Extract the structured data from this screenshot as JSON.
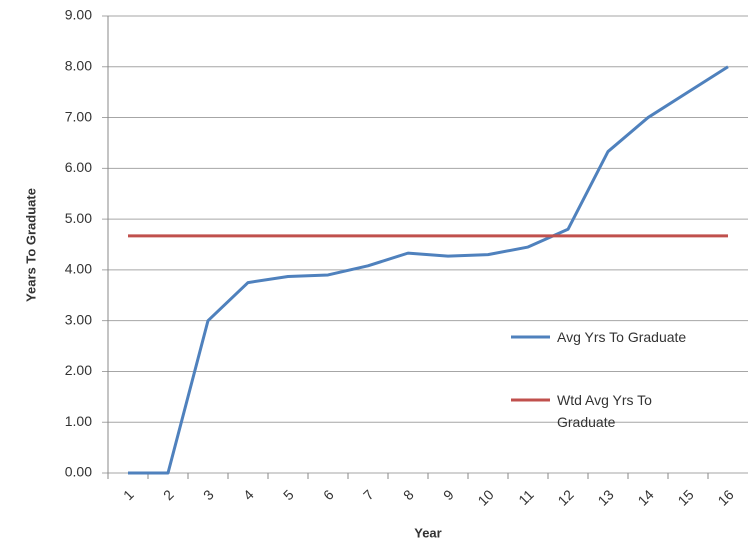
{
  "chart_data": {
    "type": "line",
    "x_label": "Year",
    "y_label": "Years To Graduate",
    "categories": [
      "1",
      "2",
      "3",
      "4",
      "5",
      "6",
      "7",
      "8",
      "9",
      "10",
      "11",
      "12",
      "13",
      "14",
      "15",
      "16"
    ],
    "series": [
      {
        "name": "Avg Yrs To Graduate",
        "color": "#4f81bd",
        "values": [
          0,
          0,
          3.0,
          3.75,
          3.87,
          3.9,
          4.08,
          4.33,
          4.27,
          4.3,
          4.45,
          4.8,
          6.33,
          7.0,
          7.5,
          8.0
        ]
      },
      {
        "name": "Wtd Avg Yrs To Graduate",
        "color": "#c0504d",
        "values": [
          4.67,
          4.67,
          4.67,
          4.67,
          4.67,
          4.67,
          4.67,
          4.67,
          4.67,
          4.67,
          4.67,
          4.67,
          4.67,
          4.67,
          4.67,
          4.67
        ]
      }
    ],
    "ylim": [
      0,
      9
    ],
    "yticks": [
      {
        "value": 0,
        "label": "0.00"
      },
      {
        "value": 1,
        "label": "1.00"
      },
      {
        "value": 2,
        "label": "2.00"
      },
      {
        "value": 3,
        "label": "3.00"
      },
      {
        "value": 4,
        "label": "4.00"
      },
      {
        "value": 5,
        "label": "5.00"
      },
      {
        "value": 6,
        "label": "6.00"
      },
      {
        "value": 7,
        "label": "7.00"
      },
      {
        "value": 8,
        "label": "8.00"
      },
      {
        "value": 9,
        "label": "9.00"
      }
    ],
    "grid": true,
    "legend": "right"
  }
}
